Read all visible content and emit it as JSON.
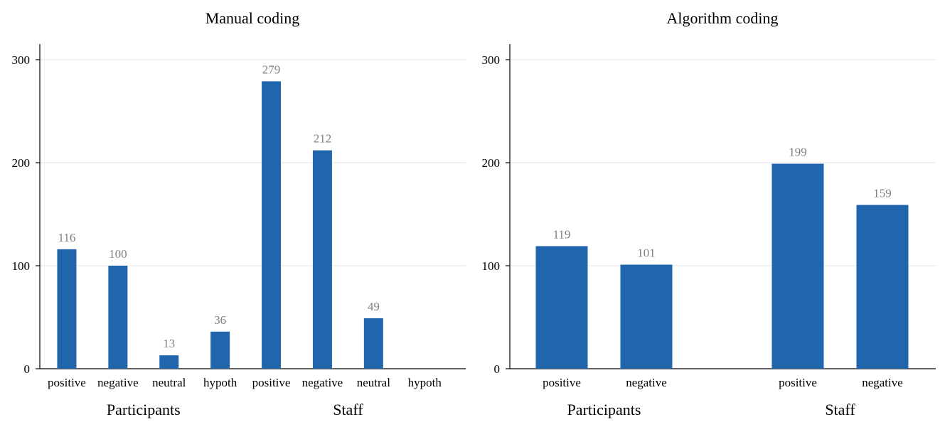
{
  "chart_data": [
    {
      "type": "bar",
      "title": "Manual coding",
      "categories": [
        "positive",
        "negative",
        "neutral",
        "hypoth",
        "positive",
        "negative",
        "neutral",
        "hypoth"
      ],
      "groups": [
        "Participants",
        "Staff"
      ],
      "group_index": [
        0,
        0,
        0,
        0,
        1,
        1,
        1,
        1
      ],
      "values": [
        116,
        100,
        13,
        36,
        279,
        212,
        49,
        0
      ],
      "value_labels": [
        "116",
        "100",
        "13",
        "36",
        "279",
        "212",
        "49",
        ""
      ],
      "yticks": [
        0,
        100,
        200,
        300
      ],
      "ytick_labels": [
        "0",
        "100",
        "200",
        "300"
      ],
      "ylim": [
        0,
        300
      ],
      "grid": true,
      "bar_color": "#2166ac",
      "label_color": "#7f7f7f"
    },
    {
      "type": "bar",
      "title": "Algorithm coding",
      "categories": [
        "positive",
        "negative",
        "positive",
        "negative"
      ],
      "groups": [
        "Participants",
        "Staff"
      ],
      "group_index": [
        0,
        0,
        1,
        1
      ],
      "values": [
        119,
        101,
        199,
        159
      ],
      "value_labels": [
        "119",
        "101",
        "199",
        "159"
      ],
      "yticks": [
        0,
        100,
        200,
        300
      ],
      "ytick_labels": [
        "0",
        "100",
        "200",
        "300"
      ],
      "ylim": [
        0,
        300
      ],
      "grid": true,
      "bar_color": "#2166ac",
      "label_color": "#7f7f7f"
    }
  ]
}
